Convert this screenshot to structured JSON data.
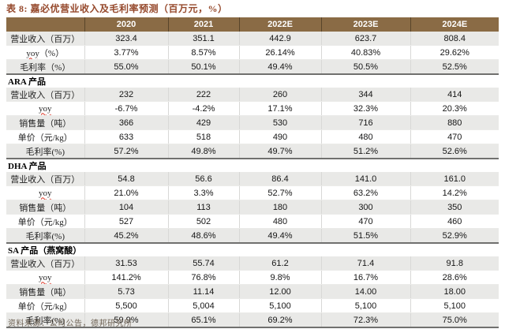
{
  "title": "表 8: 嘉必优营业收入及毛利率预测（百万元，%）",
  "source_note": "资料来源：公司公告，德邦研究所",
  "colors": {
    "title_text": "#95482B",
    "header_bg": "#8A6B45",
    "header_text": "#FFFFFF",
    "shaded_row_bg": "#E9E9E7",
    "section_rule": "#70706E",
    "squiggle": "#DD3322"
  },
  "table": {
    "columns": [
      "",
      "2020",
      "2021",
      "2022E",
      "2023E",
      "2024E"
    ],
    "sections": [
      {
        "name": "",
        "rows": [
          {
            "label_parts": [
              {
                "text": "营业收入（百万）",
                "wavy": false
              }
            ],
            "values": [
              "323.4",
              "351.1",
              "442.9",
              "623.7",
              "808.4"
            ],
            "shaded": true
          },
          {
            "label_parts": [
              {
                "text": "yoy",
                "wavy": true
              },
              {
                "text": "（%）",
                "wavy": false
              }
            ],
            "values": [
              "3.77%",
              "8.57%",
              "26.14%",
              "40.83%",
              "29.62%"
            ],
            "shaded": false
          },
          {
            "label_parts": [
              {
                "text": "毛利率（%）",
                "wavy": false
              }
            ],
            "values": [
              "55.0%",
              "50.1%",
              "49.4%",
              "50.5%",
              "52.5%"
            ],
            "shaded": true
          }
        ]
      },
      {
        "name": "ARA 产品",
        "rows": [
          {
            "label_parts": [
              {
                "text": "营业收入（百万）",
                "wavy": false
              }
            ],
            "values": [
              "232",
              "222",
              "260",
              "344",
              "414"
            ],
            "shaded": true
          },
          {
            "label_parts": [
              {
                "text": "yoy",
                "wavy": true
              }
            ],
            "values": [
              "-6.7%",
              "-4.2%",
              "17.1%",
              "32.3%",
              "20.3%"
            ],
            "shaded": false
          },
          {
            "label_parts": [
              {
                "text": "销售量（吨）",
                "wavy": false
              }
            ],
            "values": [
              "366",
              "429",
              "530",
              "716",
              "880"
            ],
            "shaded": true
          },
          {
            "label_parts": [
              {
                "text": "单价（元/kg）",
                "wavy": false
              }
            ],
            "values": [
              "633",
              "518",
              "490",
              "480",
              "470"
            ],
            "shaded": false
          },
          {
            "label_parts": [
              {
                "text": "毛利率(%)",
                "wavy": false
              }
            ],
            "values": [
              "57.2%",
              "49.8%",
              "49.7%",
              "51.2%",
              "52.6%"
            ],
            "shaded": true
          }
        ]
      },
      {
        "name": "DHA 产品",
        "rows": [
          {
            "label_parts": [
              {
                "text": "营业收入（百万）",
                "wavy": false
              }
            ],
            "values": [
              "54.8",
              "56.6",
              "86.4",
              "141.0",
              "161.0"
            ],
            "shaded": true
          },
          {
            "label_parts": [
              {
                "text": "yoy",
                "wavy": true
              }
            ],
            "values": [
              "21.0%",
              "3.3%",
              "52.7%",
              "63.2%",
              "14.2%"
            ],
            "shaded": false
          },
          {
            "label_parts": [
              {
                "text": "销售量（吨）",
                "wavy": false
              }
            ],
            "values": [
              "104",
              "113",
              "180",
              "300",
              "350"
            ],
            "shaded": true
          },
          {
            "label_parts": [
              {
                "text": "单价（元/kg）",
                "wavy": false
              }
            ],
            "values": [
              "527",
              "502",
              "480",
              "470",
              "460"
            ],
            "shaded": false
          },
          {
            "label_parts": [
              {
                "text": "毛利率(%)",
                "wavy": false
              }
            ],
            "values": [
              "45.2%",
              "48.6%",
              "49.4%",
              "51.5%",
              "52.9%"
            ],
            "shaded": true
          }
        ]
      },
      {
        "name": "SA 产品（燕窝酸）",
        "rows": [
          {
            "label_parts": [
              {
                "text": "营业收入（百万）",
                "wavy": false
              }
            ],
            "values": [
              "31.53",
              "55.74",
              "61.2",
              "71.4",
              "91.8"
            ],
            "shaded": true
          },
          {
            "label_parts": [
              {
                "text": "yoy",
                "wavy": true
              }
            ],
            "values": [
              "141.2%",
              "76.8%",
              "9.8%",
              "16.7%",
              "28.6%"
            ],
            "shaded": false
          },
          {
            "label_parts": [
              {
                "text": "销售量（吨）",
                "wavy": false
              }
            ],
            "values": [
              "5.73",
              "11.14",
              "12.00",
              "14.00",
              "18.00"
            ],
            "shaded": true
          },
          {
            "label_parts": [
              {
                "text": "单价（元/kg）",
                "wavy": false
              }
            ],
            "values": [
              "5,500",
              "5,004",
              "5,100",
              "5,100",
              "5,100"
            ],
            "shaded": false
          },
          {
            "label_parts": [
              {
                "text": "毛利率(%)",
                "wavy": false
              }
            ],
            "values": [
              "59.9%",
              "65.1%",
              "69.2%",
              "72.3%",
              "75.0%"
            ],
            "shaded": true
          }
        ]
      }
    ]
  }
}
